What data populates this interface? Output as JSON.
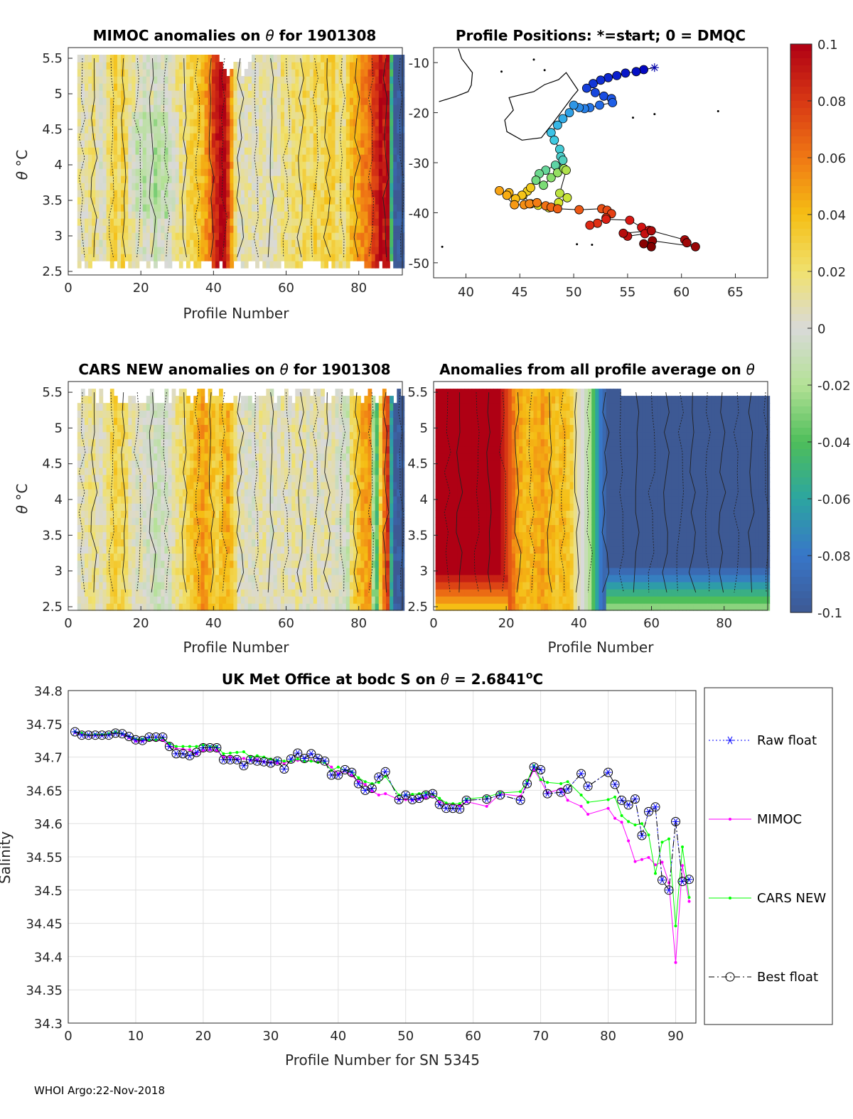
{
  "footer": "WHOI Argo:22-Nov-2018",
  "colorbar": {
    "ticks": [
      "0.1",
      "0.08",
      "0.06",
      "0.04",
      "0.02",
      "0",
      "-0.02",
      "-0.04",
      "-0.06",
      "-0.08",
      "-0.1"
    ],
    "range": [
      -0.1,
      0.1
    ]
  },
  "colors": {
    "map_start": "#ffffff",
    "raw": "#0000ff",
    "mimoc": "#ff00ff",
    "cars": "#00ff00",
    "best": "#000000",
    "grey_fill": "#d9d9d9"
  },
  "chart_data": [
    {
      "id": "mimoc",
      "type": "heatmap",
      "title_pre": "MIMOC anomalies on ",
      "title_sym": "θ",
      "title_post": "  for 1901308",
      "xlabel": "Profile Number",
      "ylabel_sym": "θ",
      "ylabel_unit": " °C",
      "xlim": [
        0,
        92
      ],
      "ylim": [
        2.45,
        5.65
      ],
      "xticks": [
        "0",
        "20",
        "40",
        "60",
        "80"
      ],
      "yticks": [
        "5.5",
        "5",
        "4.5",
        "4",
        "3.5",
        "3",
        "2.5"
      ],
      "columns": [
        0,
        0,
        0.01,
        0.005,
        0.01,
        0.015,
        0.02,
        0.01,
        0,
        0.005,
        0.02,
        0.025,
        0.03,
        0.02,
        0.03,
        0.02,
        0.015,
        0.01,
        0,
        0.005,
        -0.005,
        0,
        0.005,
        -0.01,
        -0.005,
        0,
        -0.005,
        0.005,
        0.01,
        0.015,
        0.02,
        0.01,
        0.025,
        0.03,
        0.03,
        0.035,
        0.04,
        0.05,
        0.06,
        0.08,
        0.09,
        0.1,
        0.1,
        0.08,
        0.05,
        0.02,
        0.005,
        0.005,
        0.01,
        0.01,
        0.005,
        0.005,
        0.01,
        0.01,
        0.005,
        0,
        0.01,
        0.01,
        0.02,
        0.015,
        0.015,
        0.02,
        0.02,
        0.015,
        0.025,
        0.02,
        0.02,
        0.03,
        0.02,
        0.025,
        0.03,
        0.03,
        0.03,
        0.02,
        0.02,
        0.015,
        0.03,
        0.04,
        0.045,
        0.05,
        0.055,
        0.06,
        0.065,
        0.08,
        0.085,
        0.1,
        0.09,
        0.1,
        -0.05,
        -0.1,
        -0.1,
        -0.1
      ]
    },
    {
      "id": "positions",
      "type": "scatter",
      "title": "Profile Positions: *=start; 0 = DMQC",
      "xlim": [
        37,
        68
      ],
      "ylim": [
        -53,
        -7
      ],
      "xticks": [
        "40",
        "45",
        "50",
        "55",
        "60",
        "65"
      ],
      "yticks": [
        "-10",
        "-20",
        "-30",
        "-40",
        "-50"
      ],
      "lon": [
        57.5,
        56.5,
        55.8,
        54.8,
        54.0,
        53.2,
        52.5,
        51.8,
        51.2,
        52.0,
        52.8,
        53.5,
        53.6,
        52.4,
        51.5,
        51.0,
        50.5,
        50.0,
        49.6,
        49.0,
        48.5,
        47.9,
        48.2,
        48.7,
        48.8,
        49.0,
        48.5,
        48.3,
        47.4,
        46.8,
        46.5,
        47.2,
        47.9,
        48.5,
        49.1,
        49.3,
        48.7,
        49.4,
        48.6,
        47.7,
        46.7,
        46.0,
        45.3,
        45.7,
        46.0,
        45.2,
        44.6,
        44.0,
        43.8,
        43.1,
        44.5,
        45.4,
        45.9,
        46.6,
        47.4,
        47.9,
        48.5,
        50.5,
        52.6,
        53.1,
        53.5,
        53.0,
        52.2,
        51.5,
        53.0,
        55.2,
        56.3,
        57.0,
        56.6,
        55.0,
        54.6,
        57.2,
        60.3,
        60.5,
        61.3,
        57.3,
        56.5,
        57.2
      ],
      "lat": [
        -11.0,
        -11.4,
        -11.8,
        -12.1,
        -12.6,
        -13.0,
        -13.5,
        -14.2,
        -15.1,
        -16.0,
        -16.7,
        -17.2,
        -18.0,
        -18.5,
        -19.0,
        -19.2,
        -19.0,
        -18.5,
        -20.0,
        -21.2,
        -22.5,
        -24.0,
        -25.5,
        -27.3,
        -28.8,
        -29.5,
        -31.0,
        -30.5,
        -31.5,
        -32.2,
        -33.5,
        -34.5,
        -33.0,
        -32.0,
        -31.2,
        -31.5,
        -36.1,
        -37.0,
        -38.0,
        -39.0,
        -38.5,
        -38.2,
        -36.5,
        -35.7,
        -35.0,
        -36.5,
        -37.2,
        -36.0,
        -36.5,
        -35.6,
        -38.4,
        -38.4,
        -38.2,
        -38.0,
        -38.6,
        -38.9,
        -39.2,
        -39.4,
        -39.2,
        -39.5,
        -40.2,
        -41.0,
        -42.1,
        -42.5,
        -41.3,
        -41.5,
        -42.9,
        -43.5,
        -44.2,
        -44.7,
        -44.1,
        -43.6,
        -45.4,
        -46.0,
        -46.8,
        -45.6,
        -46.2,
        -46.8
      ]
    },
    {
      "id": "cars",
      "type": "heatmap",
      "title_pre": "CARS NEW anomalies on ",
      "title_sym": "θ",
      "title_post": " for 1901308",
      "xlabel": "Profile Number",
      "ylabel_sym": "θ",
      "ylabel_unit": " °C",
      "xlim": [
        0,
        92
      ],
      "ylim": [
        2.45,
        5.65
      ],
      "xticks": [
        "0",
        "20",
        "40",
        "60",
        "80"
      ],
      "yticks": [
        "5.5",
        "5",
        "4.5",
        "4",
        "3.5",
        "3",
        "2.5"
      ],
      "columns": [
        0,
        0,
        0.005,
        0.005,
        0.01,
        0.015,
        0.015,
        0.01,
        0.005,
        0.01,
        0.02,
        0.025,
        0.03,
        0.025,
        0.025,
        0.02,
        0.01,
        0.005,
        0,
        0.005,
        0,
        -0.005,
        0,
        -0.01,
        -0.01,
        -0.005,
        -0.005,
        0,
        0.01,
        0.015,
        0.02,
        0.02,
        0.03,
        0.035,
        0.04,
        0.045,
        0.05,
        0.045,
        0.04,
        0.035,
        0.03,
        0.035,
        0.04,
        0.045,
        0.035,
        0.02,
        0.005,
        0.005,
        0.005,
        0,
        0,
        0.005,
        0.01,
        0.01,
        0.005,
        0,
        0.005,
        0.005,
        0.01,
        0.005,
        0.005,
        0.01,
        0.01,
        0.005,
        0.01,
        0,
        0.005,
        0.01,
        0,
        0.005,
        0.01,
        0.005,
        0.005,
        0,
        0,
        -0.005,
        -0.01,
        0.02,
        0.03,
        0.04,
        0.045,
        0.05,
        0.055,
        -0.02,
        -0.04,
        0.03,
        0.06,
        0.08,
        -0.06,
        -0.1,
        -0.1,
        -0.1
      ]
    },
    {
      "id": "allprofile",
      "type": "heatmap",
      "title": "Anomalies from all profile average on ",
      "title_sym": "θ",
      "xlabel": "Profile Number",
      "xlim": [
        0,
        92
      ],
      "ylim": [
        2.45,
        5.65
      ],
      "xticks": [
        "0",
        "20",
        "40",
        "60",
        "80"
      ],
      "yticks": [
        "5.5",
        "5",
        "4.5",
        "4",
        "3.5",
        "3",
        "2.5"
      ],
      "columns": [
        0.1,
        0.1,
        0.1,
        0.1,
        0.1,
        0.1,
        0.1,
        0.1,
        0.1,
        0.1,
        0.1,
        0.1,
        0.1,
        0.1,
        0.1,
        0.1,
        0.1,
        0.1,
        0.09,
        0.08,
        0.07,
        0.06,
        0.05,
        0.045,
        0.04,
        0.04,
        0.04,
        0.045,
        0.045,
        0.05,
        0.045,
        0.04,
        0.04,
        0.035,
        0.04,
        0.04,
        0.035,
        0.03,
        0.015,
        0.005,
        0,
        -0.01,
        -0.02,
        -0.04,
        -0.06,
        -0.08,
        -0.09,
        -0.1,
        -0.1,
        -0.1,
        -0.1,
        -0.1,
        -0.1,
        -0.1,
        -0.1,
        -0.1,
        -0.1,
        -0.1,
        -0.1,
        -0.1,
        -0.1,
        -0.1,
        -0.1,
        -0.1,
        -0.1,
        -0.1,
        -0.1,
        -0.1,
        -0.1,
        -0.1,
        -0.1,
        -0.1,
        -0.1,
        -0.1,
        -0.1,
        -0.1,
        -0.1,
        -0.1,
        -0.1,
        -0.1,
        -0.1,
        -0.1,
        -0.1,
        -0.1,
        -0.1,
        -0.1,
        -0.1,
        -0.1,
        -0.1,
        -0.1,
        -0.1,
        -0.1
      ]
    },
    {
      "id": "salinity",
      "type": "line",
      "title_pre": "UK Met Office at bodc S on ",
      "title_sym": "θ",
      "title_post": " = 2.6841",
      "title_sup": "o",
      "title_unit": "C",
      "xlabel": "Profile Number for SN 5345",
      "ylabel": "Salinity",
      "xlim": [
        0,
        93
      ],
      "ylim": [
        34.3,
        34.8
      ],
      "xticks": [
        "0",
        "10",
        "20",
        "30",
        "40",
        "50",
        "60",
        "70",
        "80",
        "90"
      ],
      "yticks": [
        "34.8",
        "34.75",
        "34.7",
        "34.65",
        "34.6",
        "34.55",
        "34.5",
        "34.45",
        "34.4",
        "34.35",
        "34.3"
      ],
      "legend": [
        "Raw float",
        "MIMOC",
        "CARS NEW",
        "Best float"
      ],
      "x": [
        1,
        2,
        3,
        4,
        5,
        6,
        7,
        8,
        9,
        10,
        11,
        12,
        13,
        14,
        15,
        16,
        17,
        18,
        19,
        20,
        21,
        22,
        23,
        24,
        25,
        26,
        27,
        28,
        29,
        30,
        31,
        32,
        33,
        34,
        35,
        36,
        37,
        38,
        39,
        40,
        41,
        42,
        43,
        44,
        45,
        46,
        47,
        49,
        50,
        51,
        52,
        53,
        54,
        55,
        56,
        57,
        58,
        59,
        62,
        64,
        67,
        68,
        69,
        70,
        71,
        73,
        74,
        76,
        77,
        80,
        81,
        82,
        83,
        84,
        85,
        86,
        87,
        88,
        89,
        90,
        91,
        92
      ],
      "series": [
        {
          "name": "Raw float",
          "values": [
            34.738,
            34.733,
            34.733,
            34.733,
            34.733,
            34.733,
            34.736,
            34.735,
            34.731,
            34.726,
            34.725,
            34.73,
            34.73,
            34.73,
            34.716,
            34.705,
            34.705,
            34.702,
            34.707,
            34.714,
            34.714,
            34.714,
            34.696,
            34.696,
            34.696,
            34.687,
            34.696,
            34.694,
            34.693,
            34.691,
            34.694,
            34.682,
            34.697,
            34.706,
            34.698,
            34.705,
            34.698,
            34.694,
            34.673,
            34.673,
            34.681,
            34.677,
            34.66,
            34.65,
            34.653,
            34.67,
            34.678,
            34.636,
            34.643,
            34.636,
            34.638,
            34.643,
            34.645,
            34.629,
            34.623,
            34.623,
            34.622,
            34.635,
            34.637,
            34.643,
            34.635,
            34.66,
            34.685,
            34.681,
            34.645,
            34.647,
            34.652,
            34.675,
            34.656,
            34.677,
            34.659,
            34.635,
            34.628,
            34.637,
            34.582,
            34.618,
            34.625,
            34.515,
            34.5,
            34.603,
            34.513,
            34.516
          ]
        },
        {
          "name": "MIMOC",
          "values": [
            34.737,
            34.735,
            34.732,
            34.733,
            34.733,
            34.734,
            34.737,
            34.734,
            34.729,
            34.724,
            34.724,
            34.725,
            34.725,
            34.725,
            34.716,
            34.713,
            34.712,
            34.711,
            34.705,
            34.71,
            34.711,
            34.71,
            34.7,
            34.7,
            34.697,
            34.698,
            34.695,
            34.696,
            34.693,
            34.692,
            34.691,
            34.691,
            34.694,
            34.695,
            34.694,
            34.695,
            34.693,
            34.692,
            34.685,
            34.675,
            34.679,
            34.672,
            34.663,
            34.659,
            34.649,
            34.643,
            34.645,
            34.636,
            34.636,
            34.635,
            34.637,
            34.639,
            34.642,
            34.632,
            34.63,
            34.629,
            34.627,
            34.633,
            34.626,
            34.645,
            34.641,
            34.66,
            34.681,
            34.665,
            34.646,
            34.652,
            34.635,
            34.626,
            34.614,
            34.623,
            34.608,
            34.602,
            34.574,
            34.543,
            34.546,
            34.549,
            34.538,
            34.542,
            34.511,
            34.391,
            34.537,
            34.483
          ]
        },
        {
          "name": "CARS NEW",
          "values": [
            34.738,
            34.736,
            34.733,
            34.734,
            34.734,
            34.735,
            34.738,
            34.735,
            34.731,
            34.727,
            34.727,
            34.726,
            34.726,
            34.729,
            34.72,
            34.716,
            34.716,
            34.716,
            34.716,
            34.718,
            34.716,
            34.716,
            34.705,
            34.706,
            34.707,
            34.708,
            34.7,
            34.702,
            34.7,
            34.697,
            34.695,
            34.694,
            34.694,
            34.697,
            34.694,
            34.694,
            34.692,
            34.692,
            34.68,
            34.685,
            34.68,
            34.678,
            34.669,
            34.663,
            34.66,
            34.662,
            34.671,
            34.643,
            34.643,
            34.644,
            34.645,
            34.646,
            34.644,
            34.638,
            34.631,
            34.63,
            34.63,
            34.637,
            34.64,
            34.646,
            34.648,
            34.663,
            34.687,
            34.666,
            34.662,
            34.66,
            34.663,
            34.643,
            34.632,
            34.636,
            34.64,
            34.612,
            34.603,
            34.598,
            34.6,
            34.583,
            34.525,
            34.572,
            34.577,
            34.446,
            34.565,
            34.489
          ]
        },
        {
          "name": "Best float",
          "values": [
            34.738,
            34.733,
            34.733,
            34.733,
            34.733,
            34.733,
            34.736,
            34.735,
            34.731,
            34.726,
            34.725,
            34.73,
            34.73,
            34.73,
            34.716,
            34.705,
            34.705,
            34.702,
            34.707,
            34.714,
            34.714,
            34.714,
            34.696,
            34.696,
            34.696,
            34.687,
            34.696,
            34.694,
            34.693,
            34.691,
            34.694,
            34.682,
            34.697,
            34.706,
            34.698,
            34.705,
            34.698,
            34.694,
            34.673,
            34.673,
            34.681,
            34.677,
            34.66,
            34.65,
            34.653,
            34.67,
            34.678,
            34.636,
            34.643,
            34.636,
            34.638,
            34.643,
            34.645,
            34.629,
            34.623,
            34.623,
            34.622,
            34.635,
            34.637,
            34.643,
            34.635,
            34.66,
            34.685,
            34.681,
            34.645,
            34.647,
            34.652,
            34.675,
            34.656,
            34.677,
            34.659,
            34.635,
            34.628,
            34.637,
            34.582,
            34.618,
            34.625,
            34.515,
            34.5,
            34.603,
            34.513,
            34.516
          ]
        }
      ]
    }
  ]
}
